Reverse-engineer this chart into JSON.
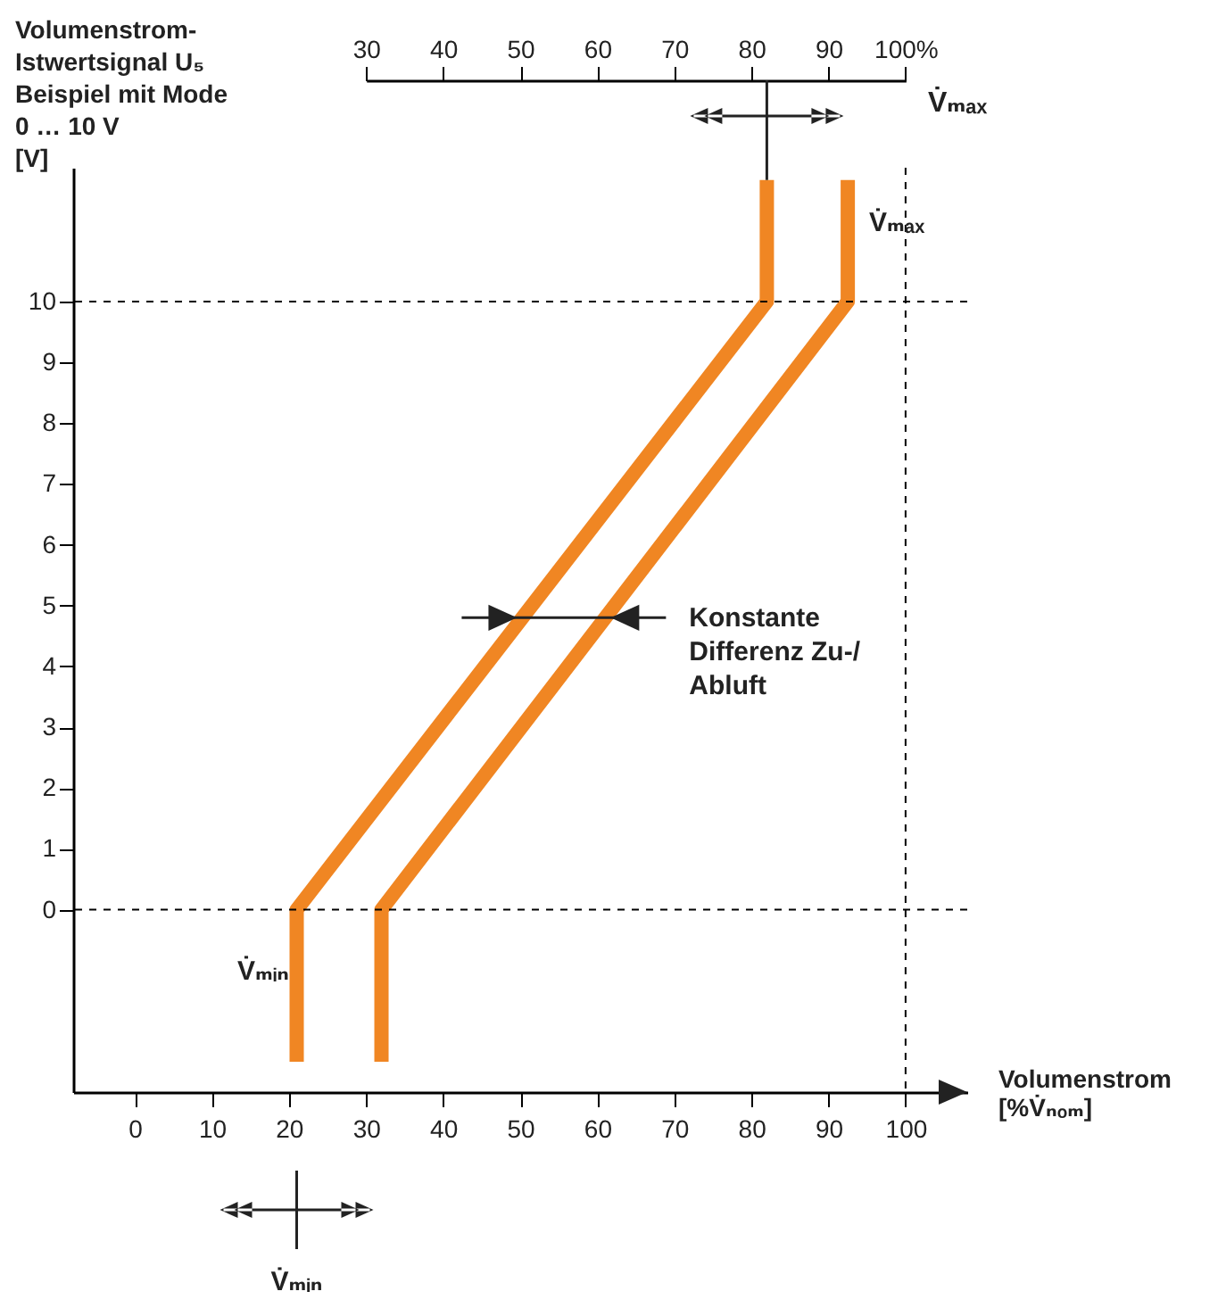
{
  "chart_data": {
    "type": "line",
    "ylabel": "Volumenstrom-\nIstwertsignal U₅\nBeispiel mit Mode\n0 … 10 V\n[V]",
    "xlabel": "Volumenstrom\n[%V̇ₙₒₘ]",
    "x2label": "V̇ₘₐₓ",
    "series": [
      {
        "color": "#f08623",
        "x": [
          21,
          21,
          82,
          82
        ],
        "values": [
          -2.5,
          0,
          10,
          12
        ]
      },
      {
        "color": "#f08623",
        "x": [
          32,
          32,
          92.5,
          92.5
        ],
        "values": [
          -2.5,
          0,
          10,
          12
        ]
      }
    ],
    "xlim": [
      -8,
      108
    ],
    "xticks": [
      0,
      10,
      20,
      30,
      40,
      50,
      60,
      70,
      80,
      90,
      100
    ],
    "ylim": [
      -3,
      12.2
    ],
    "yticks": [
      0,
      1,
      2,
      3,
      4,
      5,
      6,
      7,
      8,
      9,
      10
    ],
    "x2lim": [
      30,
      100
    ],
    "x2ticks": [
      30,
      40,
      50,
      60,
      70,
      80,
      90,
      {
        "value": 100,
        "label": "100%"
      }
    ],
    "ref_lines": [
      {
        "axis": "y",
        "value": 10,
        "color": "#000000",
        "line_style": "dashed"
      },
      {
        "axis": "y",
        "value": 0,
        "color": "#000000",
        "line_style": "dashed"
      },
      {
        "axis": "x",
        "value": 100,
        "color": "#000000",
        "line_style": "dashed"
      }
    ],
    "annotations": [
      "Konstante\nDifferenz Zu-/\nAbluft",
      "V̇ₘₐₓ",
      {
        "text": "V̇ₘᵢₙ",
        "x": 20,
        "y": -1
      },
      "V̇ₘᵢₙ"
    ],
    "grid": false,
    "legend": false,
    "line_style": "solid",
    "marker": "none"
  }
}
